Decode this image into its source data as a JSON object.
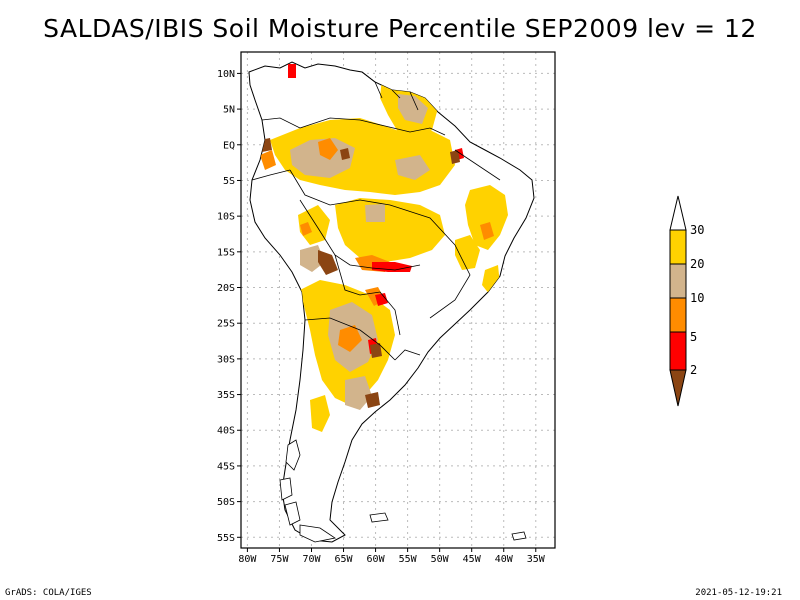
{
  "title": "SALDAS/IBIS Soil Moisture Percentile SEP2009 lev = 12",
  "footer": {
    "left": "GrADS: COLA/IGES",
    "right": "2021-05-12-19:21"
  },
  "axes": {
    "lat_labels": [
      "10N",
      "5N",
      "EQ",
      "5S",
      "10S",
      "15S",
      "20S",
      "25S",
      "30S",
      "35S",
      "40S",
      "45S",
      "50S",
      "55S"
    ],
    "lat_values": [
      10,
      5,
      0,
      -5,
      -10,
      -15,
      -20,
      -25,
      -30,
      -35,
      -40,
      -45,
      -50,
      -55
    ],
    "lon_labels": [
      "80W",
      "75W",
      "70W",
      "65W",
      "60W",
      "55W",
      "50W",
      "45W",
      "40W",
      "35W"
    ],
    "lon_values": [
      -80,
      -75,
      -70,
      -65,
      -60,
      -55,
      -50,
      -45,
      -40,
      -35
    ],
    "lon_range": [
      -81,
      -32
    ],
    "lat_range": [
      -56.5,
      13
    ],
    "grid": true
  },
  "colorbar": {
    "labels": [
      "30",
      "20",
      "10",
      "5",
      "2"
    ],
    "colors": {
      "gt30": "#ffffff",
      "20-30": "#ffd200",
      "10-20": "#d2b48c",
      "5-10": "#ff8c00",
      "2-5": "#ff0000",
      "lt2": "#8b4513"
    }
  }
}
